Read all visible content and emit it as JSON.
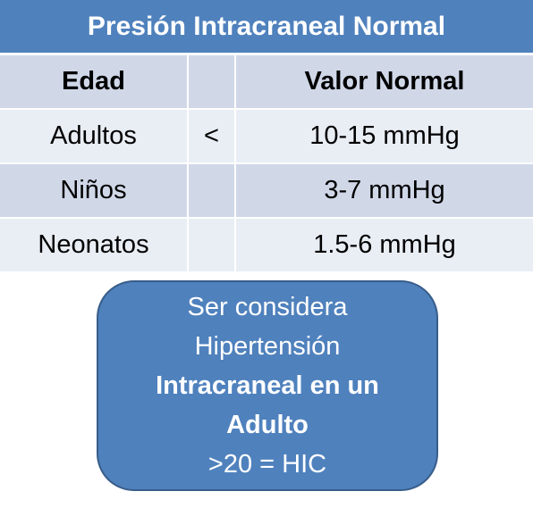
{
  "title": "Presión Intracraneal Normal",
  "headers": {
    "age": "Edad",
    "operator": "",
    "value": "Valor Normal"
  },
  "rows": [
    {
      "age": "Adultos",
      "operator": "<",
      "value": "10-15 mmHg"
    },
    {
      "age": "Niños",
      "operator": "",
      "value": "3-7 mmHg"
    },
    {
      "age": "Neonatos",
      "operator": "",
      "value": "1.5-6 mmHg"
    }
  ],
  "callout": {
    "line1": "Ser considera",
    "line2": "Hipertensión",
    "line3": "Intracraneal en un",
    "line4": "Adulto",
    "line5": ">20 = HIC"
  },
  "colors": {
    "accent": "#4f81bd",
    "row_dark": "#d0d8e8",
    "row_light": "#e9edf4",
    "callout_border": "#385d8a"
  }
}
